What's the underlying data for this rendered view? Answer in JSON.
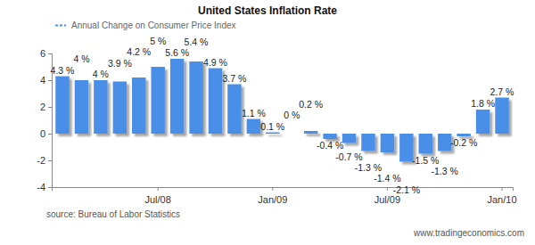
{
  "chart_data": {
    "type": "bar",
    "title": "United States Inflation Rate",
    "categories": [
      null,
      null,
      null,
      null,
      null,
      "Jul/08",
      null,
      null,
      null,
      null,
      null,
      "Jan/09",
      null,
      null,
      null,
      null,
      null,
      "Jul/09",
      null,
      null,
      null,
      null,
      null,
      "Jan/10"
    ],
    "series": [
      {
        "name": "Annual Change on Consumer Price Index",
        "color": "#4a8fe8",
        "values": [
          4.3,
          4,
          4,
          3.9,
          4.2,
          5,
          5.6,
          5.4,
          4.9,
          3.7,
          1.1,
          0.1,
          0,
          0.2,
          -0.4,
          -0.7,
          -1.3,
          -1.4,
          -2.1,
          -1.5,
          -1.3,
          -0.2,
          1.8,
          2.7
        ],
        "value_labels": [
          "4.3 %",
          "4 %",
          "4 %",
          "3.9 %",
          "4.2 %",
          "5 %",
          "5.6 %",
          "5.4 %",
          "4.9 %",
          "3.7 %",
          "1.1 %",
          "0.1 %",
          "0 %",
          "0.2 %",
          "-0.4 %",
          "-0.7 %",
          "-1.3 %",
          "-1.4 %",
          "-2.1 %",
          "-1.5 %",
          "-1.3 %",
          "-0.2 %",
          "1.8 %",
          "2.7 %"
        ]
      }
    ],
    "ylim": [
      -4,
      6
    ],
    "yticks": [
      -4,
      -2,
      0,
      2,
      4,
      6
    ],
    "grid": false,
    "legend": "top-left",
    "data_labels": true,
    "annotations": [
      "source: Bureau of Labor Statistics",
      "www.tradingeconomics.com"
    ]
  }
}
